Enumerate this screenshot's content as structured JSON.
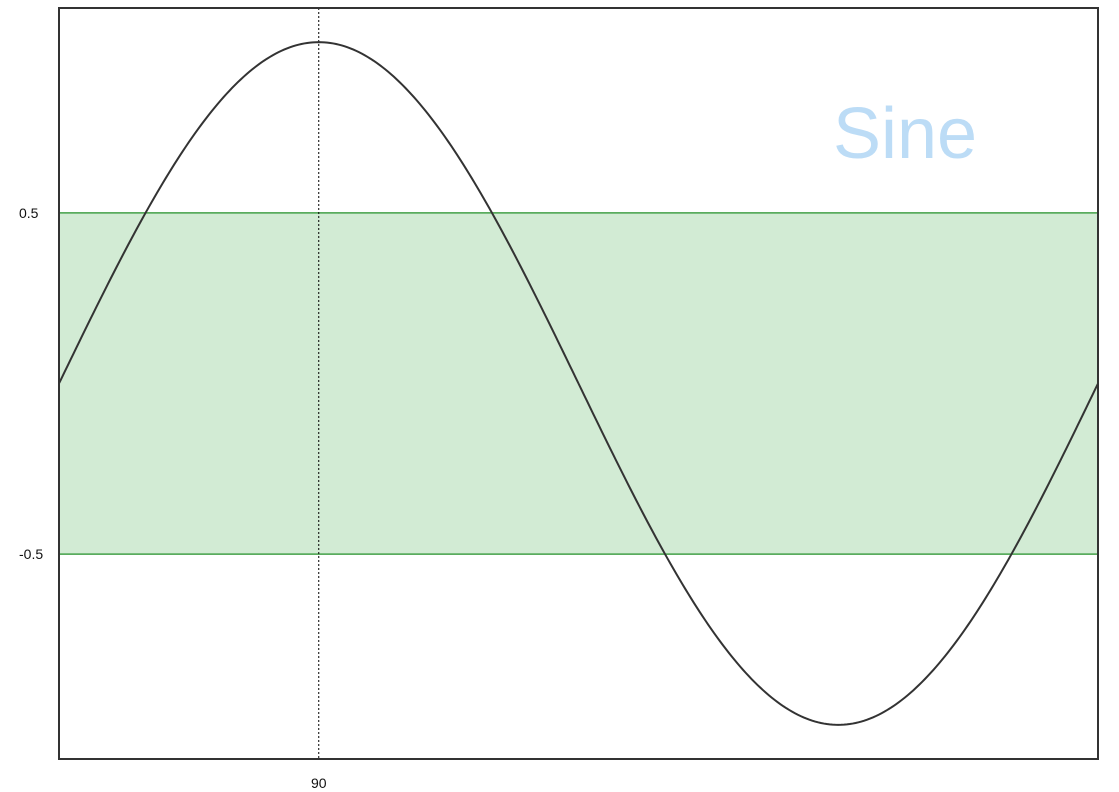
{
  "chart_data": {
    "type": "line",
    "title": "Sine",
    "xlabel": "",
    "ylabel": "",
    "xlim": [
      0,
      360
    ],
    "ylim": [
      -1.1,
      1.1
    ],
    "series": [
      {
        "function": "sin(x)",
        "x_unit": "degrees",
        "amplitude": 1,
        "color": "#333333"
      }
    ],
    "band": {
      "from": -0.5,
      "to": 0.5,
      "fill": "#d2ebd4",
      "edge_color": "#43a047"
    },
    "marker_line": {
      "x": 90,
      "style": "dotted",
      "color": "#000000"
    },
    "x_ticks": [
      {
        "value": 90,
        "label": "90"
      }
    ],
    "y_ticks": [
      {
        "value": 0.5,
        "label": "0.5"
      },
      {
        "value": -0.5,
        "label": "-0.5"
      }
    ],
    "grid": false,
    "legend": "none"
  }
}
